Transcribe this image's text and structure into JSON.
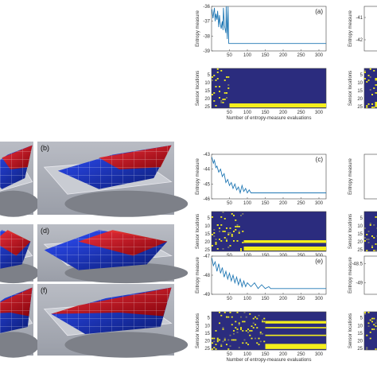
{
  "image_panels": [
    {
      "id": "b",
      "label": "(b)"
    },
    {
      "id": "d",
      "label": "(d)"
    },
    {
      "id": "f",
      "label": "(f)"
    }
  ],
  "chart_data": [
    {
      "type": "line",
      "panel_label": "(a)",
      "ylabel": "Entropy measure",
      "xticks": [
        50,
        100,
        150,
        200,
        250,
        300
      ],
      "yticks": [
        -36,
        -37,
        -38,
        -39
      ],
      "xlim": [
        0,
        320
      ],
      "ylim": [
        -39,
        -36
      ],
      "series": [
        {
          "x": [
            1,
            4,
            6,
            8,
            10,
            12,
            15,
            17,
            20,
            22,
            24,
            27,
            30,
            32,
            33,
            36,
            40,
            41,
            44,
            46,
            48,
            50,
            320
          ],
          "y": [
            -36.2,
            -36.8,
            -36.4,
            -36.1,
            -37.0,
            -36.5,
            -36.9,
            -36.3,
            -37.4,
            -36.6,
            -37.1,
            -37.5,
            -37.0,
            -37.6,
            -36.1,
            -37.3,
            -37.8,
            -36.0,
            -38.2,
            -36.0,
            -38.5,
            -38.5,
            -38.5
          ]
        }
      ]
    },
    {
      "type": "heatmap",
      "xlabel": "Number of entropy-measure evaluations",
      "ylabel": "Sensor locations",
      "yticks": [
        5,
        10,
        15,
        20,
        25
      ],
      "xticks": [
        50,
        100,
        150,
        200,
        250,
        300
      ],
      "xlim": [
        0,
        320
      ],
      "ylim": [
        1,
        26
      ]
    },
    {
      "type": "line",
      "panel_label": "(c)",
      "ylabel": "Entropy measure",
      "xticks": [
        50,
        100,
        150,
        200,
        250,
        300
      ],
      "yticks": [
        -43,
        -44,
        -45,
        -46
      ],
      "xlim": [
        0,
        320
      ],
      "ylim": [
        -46,
        -43
      ],
      "series": [
        {
          "x": [
            1,
            5,
            8,
            12,
            15,
            20,
            25,
            30,
            35,
            40,
            45,
            50,
            55,
            60,
            65,
            70,
            75,
            80,
            85,
            90,
            95,
            100,
            105,
            110,
            320
          ],
          "y": [
            -43.2,
            -43.6,
            -43.4,
            -43.9,
            -43.8,
            -44.2,
            -44.0,
            -44.5,
            -44.3,
            -44.9,
            -44.7,
            -45.1,
            -44.9,
            -45.3,
            -45.0,
            -45.4,
            -45.2,
            -45.6,
            -45.1,
            -45.5,
            -45.3,
            -45.6,
            -45.4,
            -45.6,
            -45.6
          ]
        }
      ]
    },
    {
      "type": "heatmap",
      "xlabel": "Number of entropy-measure evaluations",
      "ylabel": "Sensor locations",
      "yticks": [
        5,
        10,
        15,
        20,
        25
      ],
      "xticks": [
        50,
        100,
        150,
        200,
        250,
        300
      ],
      "xlim": [
        0,
        320
      ],
      "ylim": [
        1,
        26
      ]
    },
    {
      "type": "line",
      "panel_label": "(e)",
      "ylabel": "Entropy measure",
      "xticks": [
        50,
        100,
        150,
        200,
        250,
        300
      ],
      "yticks": [
        -47,
        -48,
        -49
      ],
      "xlim": [
        0,
        320
      ],
      "ylim": [
        -49,
        -47
      ],
      "series": [
        {
          "x": [
            1,
            5,
            10,
            15,
            20,
            25,
            30,
            35,
            40,
            45,
            50,
            55,
            60,
            65,
            70,
            75,
            80,
            85,
            90,
            95,
            100,
            110,
            120,
            130,
            140,
            150,
            160,
            165,
            320
          ],
          "y": [
            -47.1,
            -47.5,
            -47.3,
            -47.8,
            -47.4,
            -47.9,
            -47.6,
            -48.1,
            -47.8,
            -48.2,
            -47.9,
            -48.3,
            -48.0,
            -48.4,
            -48.1,
            -48.5,
            -48.2,
            -48.6,
            -48.3,
            -48.6,
            -48.4,
            -48.6,
            -48.4,
            -48.7,
            -48.5,
            -48.7,
            -48.6,
            -48.7,
            -48.7
          ]
        }
      ]
    },
    {
      "type": "heatmap",
      "xlabel": "Number of entropy-measure evaluations",
      "ylabel": "Sensor locations",
      "yticks": [
        5,
        10,
        15,
        20,
        25
      ],
      "xticks": [
        50,
        100,
        150,
        200,
        250,
        300
      ],
      "xlim": [
        0,
        320
      ],
      "ylim": [
        1,
        26
      ]
    },
    {
      "type": "line",
      "ylabel": "Entropy measure",
      "yticks": [
        -41,
        -42
      ],
      "ylim": [
        -42.5,
        -40.5
      ]
    },
    {
      "type": "heatmap",
      "ylabel": "Sensor locations",
      "yticks": [
        5,
        10,
        15,
        20,
        25
      ]
    },
    {
      "type": "line",
      "ylabel": "Entropy measure",
      "ylim": [
        -46,
        -43
      ]
    },
    {
      "type": "heatmap",
      "ylabel": "Sensor locations",
      "yticks": [
        5,
        10,
        15,
        20,
        25
      ]
    },
    {
      "type": "line",
      "ylabel": "Entropy measure",
      "yticks": [
        -48.5,
        -49
      ],
      "ylim": [
        -49.3,
        -48.3
      ]
    },
    {
      "type": "heatmap",
      "ylabel": "Sensor locations",
      "yticks": [
        5,
        10,
        15,
        20,
        25
      ]
    }
  ],
  "colors": {
    "line": "#1f77b4",
    "heat_bg": "#2b2c7e",
    "heat_fg": "#f4ee1c",
    "heat_mid": "#7a7a6a"
  }
}
